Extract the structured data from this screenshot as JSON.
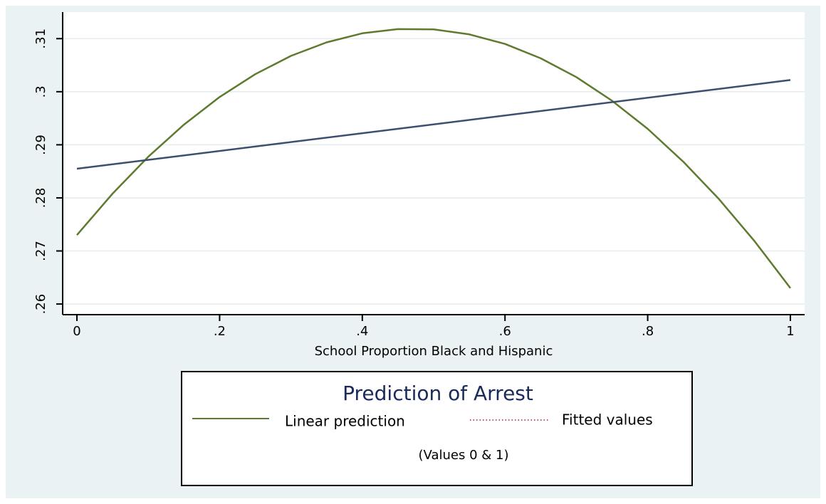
{
  "chart_data": {
    "type": "line",
    "title": "Prediction of Arrest",
    "note": "(Values 0 & 1)",
    "xlabel": "School Proportion Black and Hispanic",
    "xlim": [
      -0.02,
      1.02
    ],
    "xticks": [
      0,
      {
        "value": 0.2,
        "label": ".2"
      },
      {
        "value": 0.4,
        "label": ".4"
      },
      {
        "value": 0.6,
        "label": ".6"
      },
      {
        "value": 0.8,
        "label": ".8"
      },
      1
    ],
    "ylim": [
      0.258,
      0.315
    ],
    "yticks": [
      {
        "value": 0.26,
        "label": ".26"
      },
      {
        "value": 0.27,
        "label": ".27"
      },
      {
        "value": 0.28,
        "label": ".28"
      },
      {
        "value": 0.29,
        "label": ".29"
      },
      {
        "value": 0.3,
        "label": ".3"
      },
      {
        "value": 0.31,
        "label": ".31"
      }
    ],
    "grid": true,
    "series": [
      {
        "name": "Linear prediction",
        "color": "#5e7a2e",
        "x": [
          0,
          0.05,
          0.1,
          0.15,
          0.2,
          0.25,
          0.3,
          0.35,
          0.4,
          0.45,
          0.5,
          0.55,
          0.6,
          0.65,
          0.7,
          0.75,
          0.8,
          0.85,
          0.9,
          0.95,
          1
        ],
        "values": [
          0.273,
          0.2808,
          0.28775,
          0.2938,
          0.299,
          0.3033,
          0.30675,
          0.3093,
          0.311,
          0.3118,
          0.31175,
          0.3108,
          0.309,
          0.3063,
          0.30275,
          0.2983,
          0.293,
          0.2868,
          0.27975,
          0.2718,
          0.263
        ]
      },
      {
        "name": "Fitted values",
        "color": "#3d4f6e",
        "legend_key_color": "#c0506a",
        "x": [
          0,
          1
        ],
        "values": [
          0.2855,
          0.3022
        ]
      }
    ]
  }
}
